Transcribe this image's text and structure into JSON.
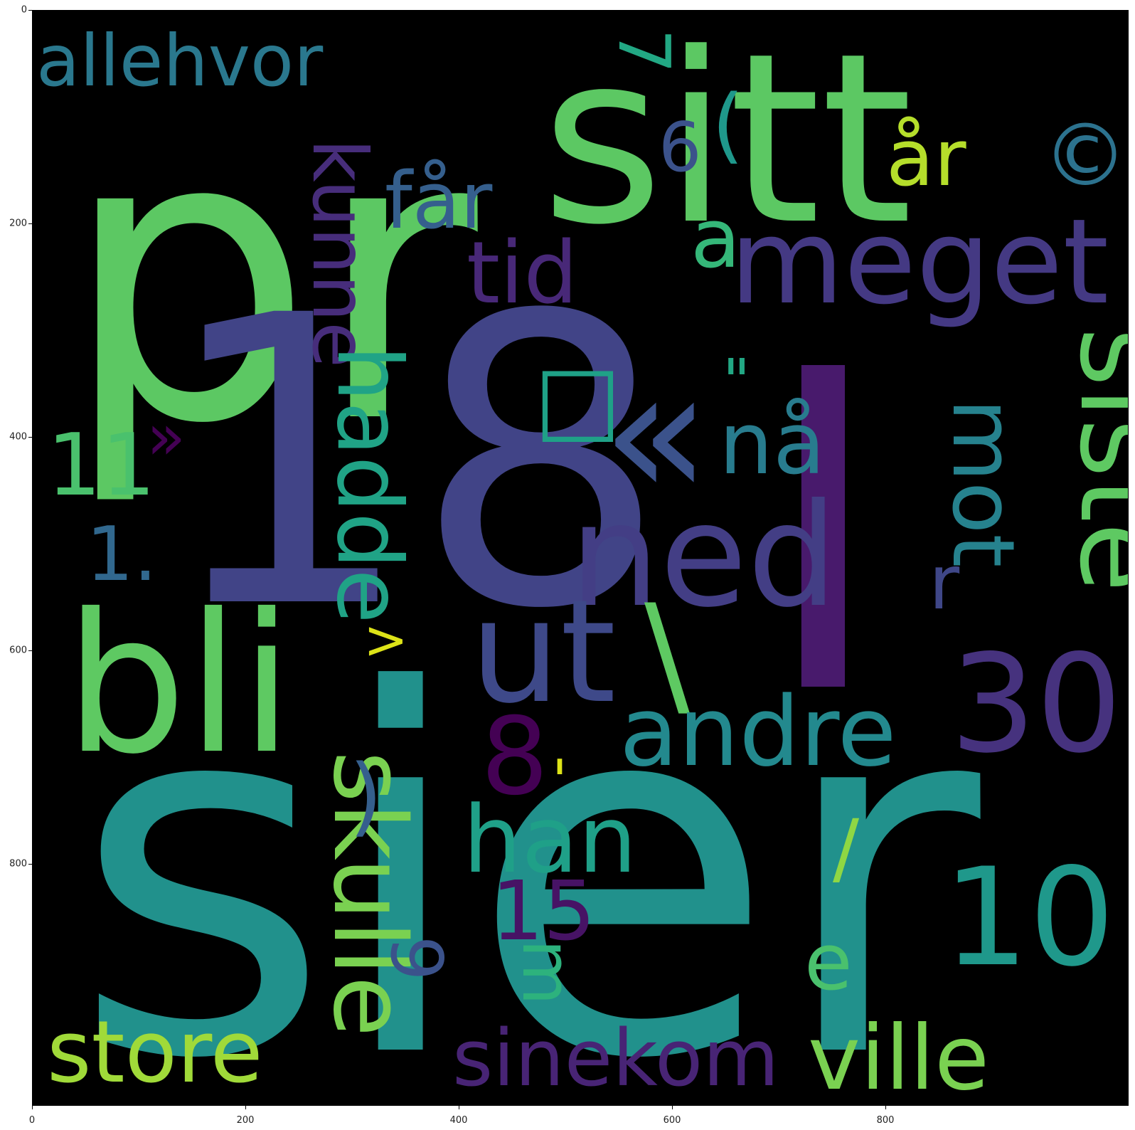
{
  "axes": {
    "x_ticks": [
      "0",
      "200",
      "400",
      "600",
      "800"
    ],
    "y_ticks": [
      "0",
      "200",
      "400",
      "600",
      "800"
    ],
    "xlim": [
      0,
      1000
    ],
    "ylim": [
      1000,
      0
    ]
  },
  "colors": {
    "background": "#000000",
    "palette": "viridis"
  },
  "words": [
    {
      "text": "pr",
      "color": "#5cc863"
    },
    {
      "text": "sitt",
      "color": "#5cc863"
    },
    {
      "text": "18",
      "color": "#414487"
    },
    {
      "text": "I",
      "color": "#481a6c"
    },
    {
      "text": "sier",
      "color": "#21918c"
    },
    {
      "text": "bli",
      "color": "#5ec962"
    },
    {
      "text": "allehvor",
      "color": "#2a788e"
    },
    {
      "text": "kunne",
      "color": "#472d7b"
    },
    {
      "text": "får",
      "color": "#355f8d"
    },
    {
      "text": "6",
      "color": "#3b528b"
    },
    {
      "text": "(",
      "color": "#1f988b"
    },
    {
      "text": "7",
      "color": "#22a884"
    },
    {
      "text": "år",
      "color": "#b5de2b"
    },
    {
      "text": "©",
      "color": "#2c728e"
    },
    {
      "text": "a",
      "color": "#35b779"
    },
    {
      "text": "meget",
      "color": "#443983"
    },
    {
      "text": "tid",
      "color": "#482878"
    },
    {
      "text": "hadde",
      "color": "#20a386"
    },
    {
      "text": "»",
      "color": "#440154"
    },
    {
      "text": "«",
      "color": "#3b528b"
    },
    {
      "text": "\"",
      "color": "#22a884"
    },
    {
      "text": "nå",
      "color": "#287c8e"
    },
    {
      "text": "mot",
      "color": "#26828e"
    },
    {
      "text": "siste",
      "color": "#5ec962"
    },
    {
      "text": "11",
      "color": "#4ac16d"
    },
    {
      "text": "1.",
      "color": "#31688e"
    },
    {
      "text": "ned",
      "color": "#433e85"
    },
    {
      "text": "r",
      "color": "#3f4788"
    },
    {
      "text": ">",
      "color": "#dde318"
    },
    {
      "text": "ut",
      "color": "#3e4989"
    },
    {
      "text": "\\",
      "color": "#5ec962"
    },
    {
      "text": "30",
      "color": "#46327e"
    },
    {
      "text": "8",
      "color": "#440154"
    },
    {
      "text": "andre",
      "color": "#23898e"
    },
    {
      "text": "'",
      "color": "#dde318"
    },
    {
      "text": "skulle",
      "color": "#7ad151"
    },
    {
      "text": ")",
      "color": "#355f8d"
    },
    {
      "text": "han",
      "color": "#1fa088"
    },
    {
      "text": "/",
      "color": "#8fd744"
    },
    {
      "text": "15",
      "color": "#471365"
    },
    {
      "text": "10",
      "color": "#1f988b"
    },
    {
      "text": "9",
      "color": "#3b528b"
    },
    {
      "text": "m",
      "color": "#2db27d"
    },
    {
      "text": "e",
      "color": "#4ac16d"
    },
    {
      "text": "store",
      "color": "#a0da39"
    },
    {
      "text": "sinekom",
      "color": "#482475"
    },
    {
      "text": "ville",
      "color": "#7ad151"
    },
    {
      "text": "□",
      "color": "#1fa187"
    }
  ]
}
